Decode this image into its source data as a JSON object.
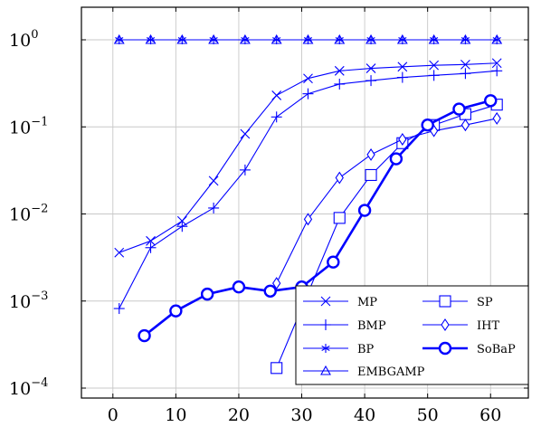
{
  "chart_data": {
    "type": "line",
    "title": "",
    "xlabel": "",
    "ylabel": "",
    "xlim": [
      -5,
      66
    ],
    "ylim": [
      0.0001,
      2
    ],
    "yscale": "log",
    "grid": true,
    "legend_position": "bottom-right",
    "x_ticks": [
      0,
      10,
      20,
      30,
      40,
      50,
      60
    ],
    "y_ticks": [
      {
        "value": 0.0001,
        "base": "10",
        "exp": "−4"
      },
      {
        "value": 0.001,
        "base": "10",
        "exp": "−3"
      },
      {
        "value": 0.01,
        "base": "10",
        "exp": "−2"
      },
      {
        "value": 0.1,
        "base": "10",
        "exp": "−1"
      },
      {
        "value": 1,
        "base": "10",
        "exp": "0"
      }
    ],
    "line_color": "#0000ff",
    "series": [
      {
        "name": "MP",
        "marker": "x",
        "bold": false,
        "x": [
          1,
          6,
          11,
          16,
          21,
          26,
          31,
          36,
          41,
          46,
          51,
          56,
          61
        ],
        "y": [
          0.0036,
          0.0049,
          0.0083,
          0.024,
          0.083,
          0.23,
          0.36,
          0.44,
          0.47,
          0.49,
          0.51,
          0.52,
          0.54
        ]
      },
      {
        "name": "BMP",
        "marker": "plus",
        "bold": false,
        "x": [
          1,
          6,
          11,
          16,
          21,
          26,
          31,
          36,
          41,
          46,
          51,
          56,
          61
        ],
        "y": [
          0.00082,
          0.0041,
          0.0072,
          0.0117,
          0.032,
          0.13,
          0.24,
          0.31,
          0.34,
          0.37,
          0.39,
          0.41,
          0.44
        ]
      },
      {
        "name": "BP",
        "marker": "star",
        "bold": false,
        "x": [
          1,
          6,
          11,
          16,
          21,
          26,
          31,
          36,
          41,
          46,
          51,
          56,
          61
        ],
        "y": [
          1,
          1,
          1,
          1,
          1,
          1,
          1,
          1,
          1,
          1,
          1,
          1,
          1
        ]
      },
      {
        "name": "EMBGAMP",
        "marker": "triangle",
        "bold": false,
        "x": [
          1,
          6,
          11,
          16,
          21,
          26,
          31,
          36,
          41,
          46,
          51,
          56,
          61
        ],
        "y": [
          1,
          1,
          1,
          1,
          1,
          1,
          1,
          1,
          1,
          1,
          1,
          1,
          1
        ]
      },
      {
        "name": "SP",
        "marker": "square",
        "bold": false,
        "x": [
          26,
          36,
          41,
          46,
          51,
          56,
          61
        ],
        "y": [
          0.00017,
          0.009,
          0.028,
          0.065,
          0.105,
          0.14,
          0.18
        ]
      },
      {
        "name": "IHT",
        "marker": "diamond",
        "bold": false,
        "x": [
          26,
          31,
          36,
          41,
          46,
          51,
          56,
          61
        ],
        "y": [
          0.0016,
          0.0087,
          0.026,
          0.048,
          0.072,
          0.09,
          0.105,
          0.125
        ]
      },
      {
        "name": "SoBaP",
        "marker": "circle",
        "bold": true,
        "x": [
          5,
          10,
          15,
          20,
          25,
          30,
          35,
          40,
          45,
          50,
          55,
          60
        ],
        "y": [
          0.0004,
          0.00077,
          0.0012,
          0.00145,
          0.0013,
          0.00145,
          0.0028,
          0.011,
          0.043,
          0.105,
          0.16,
          0.2
        ]
      }
    ],
    "legend_columns": [
      [
        "MP",
        "BMP",
        "BP",
        "EMBGAMP"
      ],
      [
        "SP",
        "IHT",
        "SoBaP"
      ]
    ]
  }
}
